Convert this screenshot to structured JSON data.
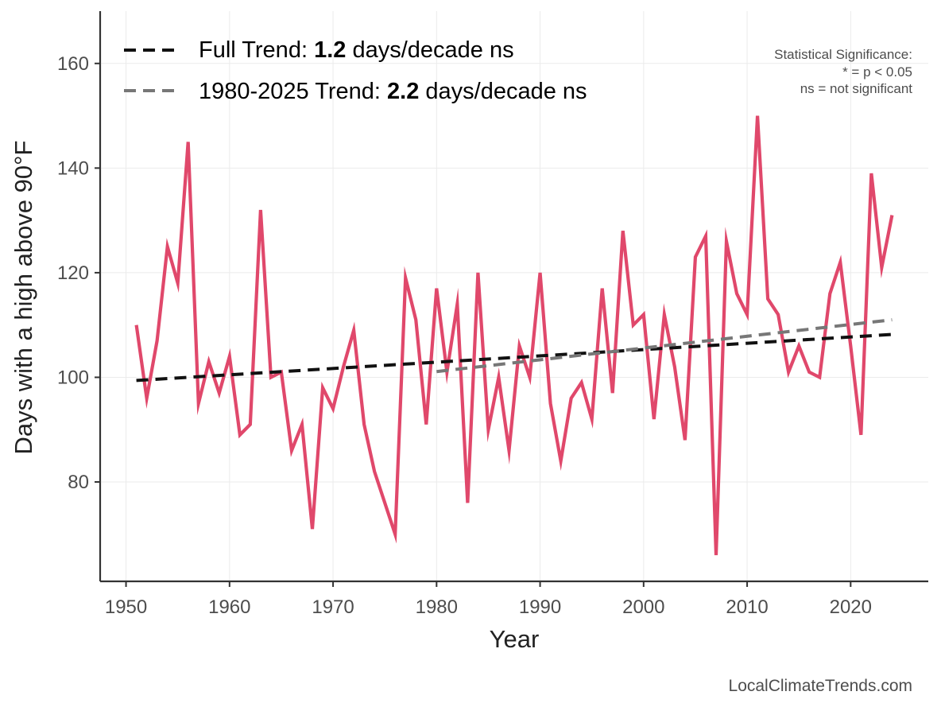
{
  "chart_data": {
    "type": "line",
    "title": "",
    "xlabel": "Year",
    "ylabel": "Days with a high above 90°F",
    "xlim": [
      1947.5,
      2027.5
    ],
    "ylim": [
      61,
      170
    ],
    "x_ticks": [
      1950,
      1960,
      1970,
      1980,
      1990,
      2000,
      2010,
      2020
    ],
    "y_ticks": [
      80,
      100,
      120,
      140,
      160
    ],
    "grid": true,
    "series": [
      {
        "name": "Days above 90°F",
        "color": "#e0486b",
        "x": [
          1951,
          1952,
          1953,
          1954,
          1955,
          1956,
          1957,
          1958,
          1959,
          1960,
          1961,
          1962,
          1963,
          1964,
          1965,
          1966,
          1967,
          1968,
          1969,
          1970,
          1971,
          1972,
          1973,
          1974,
          1975,
          1976,
          1977,
          1978,
          1979,
          1980,
          1981,
          1982,
          1983,
          1984,
          1985,
          1986,
          1987,
          1988,
          1989,
          1990,
          1991,
          1992,
          1993,
          1994,
          1995,
          1996,
          1997,
          1998,
          1999,
          2000,
          2001,
          2002,
          2003,
          2004,
          2005,
          2006,
          2007,
          2008,
          2009,
          2010,
          2011,
          2012,
          2013,
          2014,
          2015,
          2016,
          2017,
          2018,
          2019,
          2020,
          2021,
          2022,
          2023,
          2024
        ],
        "values": [
          110,
          96,
          107,
          125,
          118,
          145,
          95,
          103,
          97,
          104,
          89,
          91,
          132,
          100,
          101,
          86,
          91,
          71,
          98,
          94,
          102,
          109,
          91,
          82,
          76,
          70,
          119,
          111,
          91,
          117,
          101,
          114,
          76,
          120,
          90,
          100,
          86,
          106,
          100,
          120,
          95,
          84,
          96,
          99,
          92,
          117,
          97,
          128,
          110,
          112,
          92,
          112,
          102,
          88,
          123,
          127,
          66,
          126,
          116,
          112,
          150,
          115,
          112,
          101,
          106,
          101,
          100,
          116,
          122,
          106,
          89,
          139,
          121,
          131
        ]
      }
    ],
    "trends": [
      {
        "name": "Full Trend",
        "color": "#111111",
        "x": [
          1951,
          2024
        ],
        "values": [
          99.4,
          108.2
        ]
      },
      {
        "name": "1980-2025 Trend",
        "color": "#777777",
        "x": [
          1980,
          2024
        ],
        "values": [
          101.1,
          111.0
        ]
      }
    ],
    "legend": [
      {
        "prefix": "Full Trend: ",
        "value": "1.2",
        "suffix": " days/decade ns",
        "color": "#111111"
      },
      {
        "prefix": "1980-2025 Trend: ",
        "value": "2.2",
        "suffix": " days/decade ns",
        "color": "#777777"
      }
    ],
    "legend_position": "top-left",
    "annotation": [
      "Statistical Significance:",
      "* = p < 0.05",
      "ns = not significant"
    ],
    "annotation_position": "top-right"
  },
  "credit": "LocalClimateTrends.com"
}
